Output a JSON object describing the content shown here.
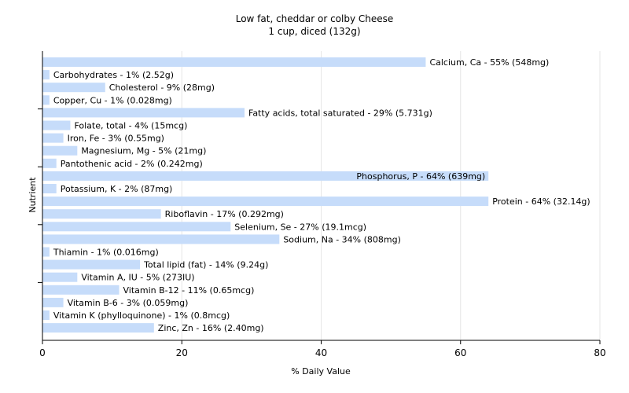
{
  "chart_data": {
    "type": "bar",
    "orientation": "horizontal",
    "title": "Low fat, cheddar or colby Cheese",
    "subtitle": "1 cup, diced (132g)",
    "xlabel": "% Daily Value",
    "ylabel": "Nutrient",
    "xlim": [
      0,
      80
    ],
    "xticks": [
      0,
      20,
      40,
      60,
      80
    ],
    "grid": true,
    "bar_color": "#c6dcfa",
    "grid_color": "#e6e6e6",
    "categories": [
      "Calcium, Ca",
      "Carbohydrates",
      "Cholesterol",
      "Copper, Cu",
      "Fatty acids, total saturated",
      "Folate, total",
      "Iron, Fe",
      "Magnesium, Mg",
      "Pantothenic acid",
      "Phosphorus, P",
      "Potassium, K",
      "Protein",
      "Riboflavin",
      "Selenium, Se",
      "Sodium, Na",
      "Thiamin",
      "Total lipid (fat)",
      "Vitamin A, IU",
      "Vitamin B-12",
      "Vitamin B-6",
      "Vitamin K (phylloquinone)",
      "Zinc, Zn"
    ],
    "values": [
      55,
      1,
      9,
      1,
      29,
      4,
      3,
      5,
      2,
      64,
      2,
      64,
      17,
      27,
      34,
      1,
      14,
      5,
      11,
      3,
      1,
      16
    ],
    "labels": [
      "Calcium, Ca - 55% (548mg)",
      "Carbohydrates - 1% (2.52g)",
      "Cholesterol - 9% (28mg)",
      "Copper, Cu - 1% (0.028mg)",
      "Fatty acids, total saturated - 29% (5.731g)",
      "Folate, total - 4% (15mcg)",
      "Iron, Fe - 3% (0.55mg)",
      "Magnesium, Mg - 5% (21mg)",
      "Pantothenic acid - 2% (0.242mg)",
      "Phosphorus, P - 64% (639mg)",
      "Potassium, K - 2% (87mg)",
      "Protein - 64% (32.14g)",
      "Riboflavin - 17% (0.292mg)",
      "Selenium, Se - 27% (19.1mcg)",
      "Sodium, Na - 34% (808mg)",
      "Thiamin - 1% (0.016mg)",
      "Total lipid (fat) - 14% (9.24g)",
      "Vitamin A, IU - 5% (273IU)",
      "Vitamin B-12 - 11% (0.65mcg)",
      "Vitamin B-6 - 3% (0.059mg)",
      "Vitamin K (phylloquinone) - 1% (0.8mcg)",
      "Zinc, Zn - 16% (2.40mg)"
    ]
  }
}
